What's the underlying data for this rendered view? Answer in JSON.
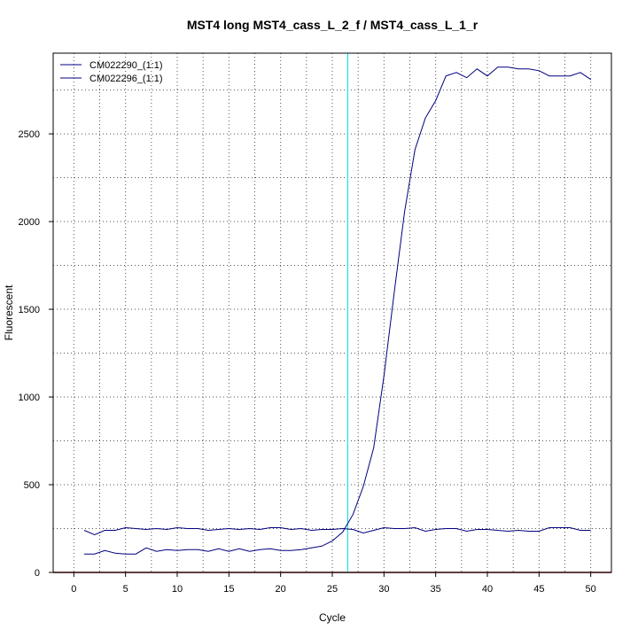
{
  "chart_data": {
    "type": "line",
    "title": "MST4 long MST4_cass_L_2_f / MST4_cass_L_1_r",
    "xlabel": "Cycle",
    "ylabel": "Fluorescent",
    "xlim": [
      -2,
      52
    ],
    "ylim": [
      0,
      2960
    ],
    "x_ticks": [
      0,
      5,
      10,
      15,
      20,
      25,
      30,
      35,
      40,
      45,
      50
    ],
    "x_tick_labels": [
      "0",
      "5",
      "10",
      "15",
      "20",
      "25",
      "30",
      "35",
      "40",
      "45",
      "50"
    ],
    "y_ticks": [
      0,
      500,
      1000,
      1500,
      2000,
      2500
    ],
    "y_tick_labels": [
      "0",
      "500",
      "1000",
      "1500",
      "2000",
      "2500"
    ],
    "threshold_cycle": 26.5,
    "grid": true,
    "legend_position": "top-left",
    "colors": {
      "series": "#00007f",
      "threshold": "#00e5e5",
      "baseline": "#7f0000",
      "grid": "#555555"
    },
    "x": [
      1,
      2,
      3,
      4,
      5,
      6,
      7,
      8,
      9,
      10,
      11,
      12,
      13,
      14,
      15,
      16,
      17,
      18,
      19,
      20,
      21,
      22,
      23,
      24,
      25,
      26,
      27,
      28,
      29,
      30,
      31,
      32,
      33,
      34,
      35,
      36,
      37,
      38,
      39,
      40,
      41,
      42,
      43,
      44,
      45,
      46,
      47,
      48,
      49,
      50
    ],
    "series": [
      {
        "name": "CM022290_(1:1)",
        "values": [
          105,
          105,
          125,
          110,
          105,
          105,
          140,
          120,
          130,
          125,
          130,
          130,
          120,
          135,
          120,
          135,
          120,
          130,
          135,
          125,
          125,
          130,
          140,
          150,
          180,
          230,
          330,
          490,
          710,
          1120,
          1600,
          2060,
          2410,
          2590,
          2690,
          2830,
          2850,
          2820,
          2870,
          2830,
          2880,
          2880,
          2870,
          2870,
          2860,
          2830,
          2830,
          2830,
          2850,
          2810
        ]
      },
      {
        "name": "CM022296_(1:1)",
        "values": [
          240,
          215,
          240,
          240,
          255,
          250,
          245,
          250,
          245,
          255,
          250,
          250,
          240,
          245,
          250,
          245,
          250,
          245,
          255,
          255,
          245,
          250,
          240,
          245,
          245,
          250,
          245,
          225,
          240,
          255,
          250,
          250,
          255,
          235,
          245,
          250,
          250,
          235,
          245,
          245,
          240,
          235,
          240,
          235,
          235,
          255,
          255,
          255,
          240,
          240
        ]
      }
    ]
  }
}
